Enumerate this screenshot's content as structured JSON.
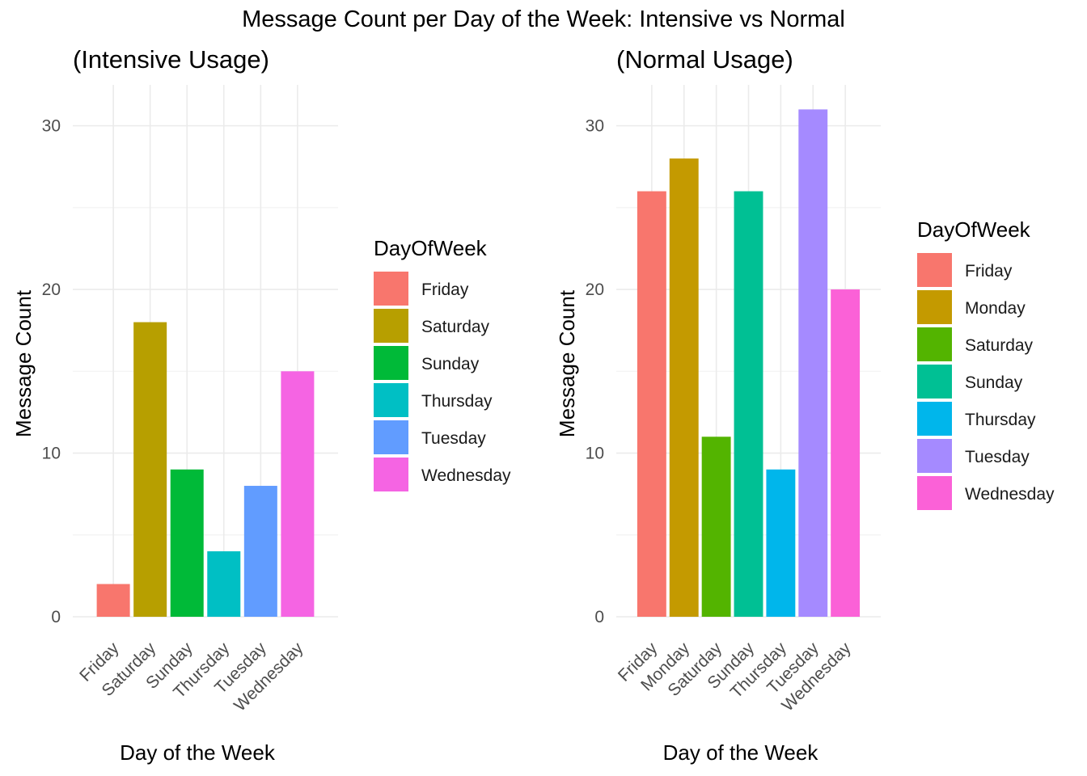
{
  "figure": {
    "title": "Message Count per Day of the Week: Intensive vs Normal"
  },
  "chart_data": [
    {
      "type": "bar",
      "title": "(Intensive Usage)",
      "xlabel": "Day of the Week",
      "ylabel": "Message Count",
      "ylim": [
        0,
        32.5
      ],
      "yticks": [
        0,
        10,
        20,
        30
      ],
      "grid": true,
      "legend": {
        "title": "DayOfWeek",
        "position": "right"
      },
      "categories": [
        "Friday",
        "Saturday",
        "Sunday",
        "Thursday",
        "Tuesday",
        "Wednesday"
      ],
      "values": [
        2,
        18,
        9,
        4,
        8,
        15
      ],
      "colors": [
        "#F8766D",
        "#B79F00",
        "#00BA38",
        "#00BFC4",
        "#619CFF",
        "#F564E3"
      ]
    },
    {
      "type": "bar",
      "title": "(Normal Usage)",
      "xlabel": "Day of the Week",
      "ylabel": "Message Count",
      "ylim": [
        0,
        32.5
      ],
      "yticks": [
        0,
        10,
        20,
        30
      ],
      "grid": true,
      "legend": {
        "title": "DayOfWeek",
        "position": "right"
      },
      "categories": [
        "Friday",
        "Monday",
        "Saturday",
        "Sunday",
        "Thursday",
        "Tuesday",
        "Wednesday"
      ],
      "values": [
        26,
        28,
        11,
        26,
        9,
        31,
        20
      ],
      "colors": [
        "#F8766D",
        "#C49A00",
        "#53B400",
        "#00C094",
        "#00B6EB",
        "#A58AFF",
        "#FB61D7"
      ]
    }
  ]
}
